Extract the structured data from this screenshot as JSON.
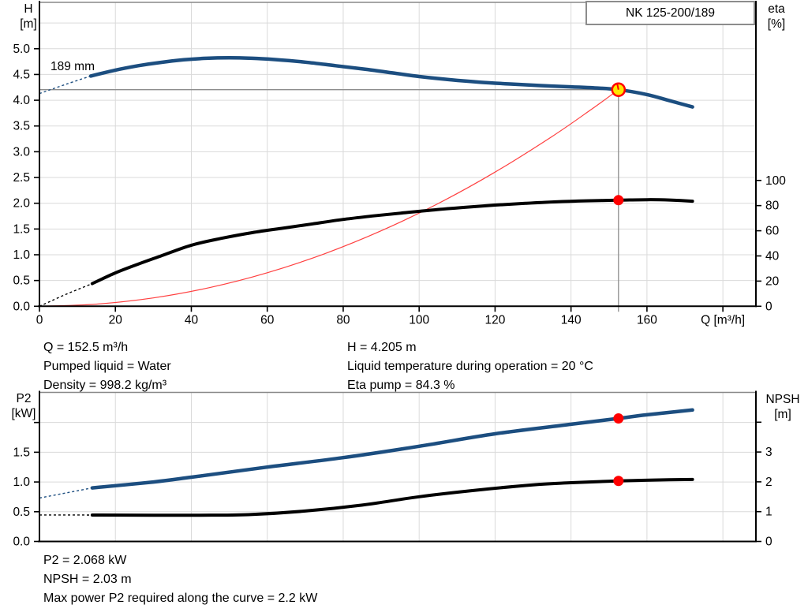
{
  "header": {
    "pump_model": "NK 125-200/189"
  },
  "colors": {
    "pump_blue": "#1C4E80",
    "efficiency_black": "#000000",
    "system_red": "#FF4040",
    "duty_yellow": "#FFE600",
    "marker_red": "#FF0000",
    "grid_gray": "#DADADA",
    "crosshair_gray": "#8C8C8C",
    "axis_black": "#000000"
  },
  "chart_data": [
    {
      "type": "line",
      "title": "Pump performance curve H-Q with efficiency and system curve",
      "xlabel": "Q [m³/h]",
      "ylabel_left": [
        "H",
        "[m]"
      ],
      "ylabel_right": [
        "eta",
        "[%]"
      ],
      "x": {
        "min": 0,
        "max": 188.7,
        "grid_step": 20,
        "ticks_labeled": [
          0,
          20,
          40,
          60,
          80,
          100,
          120,
          140,
          160
        ],
        "ticks_unlabeled": [
          180
        ],
        "decimals": 0
      },
      "yl": {
        "min": 0,
        "max": 5.9,
        "grid_step": 0.5,
        "ticks_labeled": [
          0,
          0.5,
          1,
          1.5,
          2,
          2.5,
          3,
          3.5,
          4,
          4.5,
          5
        ],
        "ticks_unlabeled": [],
        "decimals": 1
      },
      "yr": {
        "min": 0,
        "max": 241.5,
        "ticks_labeled": [
          0,
          20,
          40,
          60,
          80,
          100
        ],
        "ticks_unlabeled": [],
        "decimals": 0
      },
      "annotation": {
        "text": "189 mm"
      },
      "series": [
        {
          "name": "system-curve",
          "axis": "yl",
          "color": "#FF4040",
          "width": 1.2,
          "points": [
            [
              0,
              0
            ],
            [
              15,
              0.041
            ],
            [
              30,
              0.163
            ],
            [
              45,
              0.366
            ],
            [
              60,
              0.651
            ],
            [
              75,
              1.017
            ],
            [
              90,
              1.465
            ],
            [
              105,
              1.994
            ],
            [
              120,
              2.604
            ],
            [
              135,
              3.296
            ],
            [
              145,
              3.803
            ],
            [
              152.5,
              4.205
            ]
          ]
        },
        {
          "name": "efficiency-curve",
          "axis": "yr",
          "color": "#000000",
          "width": 4,
          "dashed": [
            [
              0,
              0
            ],
            [
              7,
              9.5
            ],
            [
              13.9,
              18
            ]
          ],
          "points": [
            [
              13.9,
              18
            ],
            [
              20,
              26.5
            ],
            [
              26,
              33.5
            ],
            [
              32,
              40
            ],
            [
              40,
              48.5
            ],
            [
              48,
              54
            ],
            [
              56,
              58.5
            ],
            [
              64,
              62
            ],
            [
              72,
              65.5
            ],
            [
              80,
              69
            ],
            [
              88,
              71.8
            ],
            [
              96,
              74.3
            ],
            [
              104,
              76.6
            ],
            [
              112,
              78.6
            ],
            [
              120,
              80.4
            ],
            [
              128,
              81.8
            ],
            [
              136,
              83
            ],
            [
              144,
              83.8
            ],
            [
              152.5,
              84.3
            ],
            [
              160,
              84.7
            ],
            [
              166,
              84.4
            ],
            [
              172,
              83.5
            ]
          ]
        },
        {
          "name": "pump-curve",
          "axis": "yl",
          "color": "#1C4E80",
          "width": 4.5,
          "dashed": [
            [
              0,
              4.13
            ],
            [
              7,
              4.31
            ],
            [
              13.5,
              4.47
            ]
          ],
          "points": [
            [
              13.5,
              4.47
            ],
            [
              20,
              4.585
            ],
            [
              26,
              4.67
            ],
            [
              32,
              4.735
            ],
            [
              38,
              4.785
            ],
            [
              44,
              4.815
            ],
            [
              50,
              4.825
            ],
            [
              56,
              4.815
            ],
            [
              62,
              4.79
            ],
            [
              70,
              4.74
            ],
            [
              78,
              4.67
            ],
            [
              86,
              4.6
            ],
            [
              94,
              4.52
            ],
            [
              100,
              4.46
            ],
            [
              108,
              4.4
            ],
            [
              116,
              4.35
            ],
            [
              124,
              4.315
            ],
            [
              132,
              4.285
            ],
            [
              140,
              4.26
            ],
            [
              146,
              4.24
            ],
            [
              152.5,
              4.205
            ],
            [
              160,
              4.11
            ],
            [
              166,
              3.99
            ],
            [
              172,
              3.87
            ]
          ]
        }
      ],
      "markers": [
        {
          "name": "duty-point",
          "axis": "yl",
          "x": 152.5,
          "y": 4.205,
          "style": "duty",
          "crosshair": true
        },
        {
          "name": "efficiency-point",
          "axis": "yr",
          "x": 152.5,
          "y": 84.3,
          "style": "dot"
        }
      ]
    },
    {
      "type": "line",
      "title": "Power P2 and NPSH curves",
      "xlabel": "",
      "ylabel_left": [
        "P2",
        "[kW]"
      ],
      "ylabel_right": [
        "NPSH",
        "[m]"
      ],
      "x": {
        "min": 0,
        "max": 188.7,
        "grid_step": 20,
        "ticks_labeled": [],
        "ticks_unlabeled": [],
        "decimals": 0
      },
      "yl": {
        "min": 0,
        "max": 2.506,
        "grid_step": 0.5,
        "ticks_labeled": [
          0,
          0.5,
          1,
          1.5
        ],
        "ticks_unlabeled": [
          2
        ],
        "decimals": 1
      },
      "yr": {
        "min": 0,
        "max": 5.0,
        "ticks_labeled": [
          0,
          1,
          2,
          3
        ],
        "ticks_unlabeled": [
          4
        ],
        "decimals": 0
      },
      "series": [
        {
          "name": "p2-curve",
          "axis": "yl",
          "color": "#1C4E80",
          "width": 4.5,
          "dashed": [
            [
              0,
              0.73
            ],
            [
              13.9,
              0.9
            ]
          ],
          "points": [
            [
              13.9,
              0.9
            ],
            [
              30,
              1.0
            ],
            [
              40,
              1.08
            ],
            [
              60,
              1.25
            ],
            [
              80,
              1.41
            ],
            [
              100,
              1.6
            ],
            [
              120,
              1.81
            ],
            [
              140,
              1.97
            ],
            [
              152.5,
              2.068
            ],
            [
              160,
              2.13
            ],
            [
              172,
              2.21
            ]
          ]
        },
        {
          "name": "npsh-curve",
          "axis": "yr",
          "color": "#000000",
          "width": 4,
          "dashed": [
            [
              0,
              0.89
            ],
            [
              13.9,
              0.885
            ]
          ],
          "points": [
            [
              13.9,
              0.885
            ],
            [
              30,
              0.88
            ],
            [
              42,
              0.88
            ],
            [
              55,
              0.9
            ],
            [
              70,
              1.02
            ],
            [
              85,
              1.22
            ],
            [
              100,
              1.5
            ],
            [
              115,
              1.72
            ],
            [
              130,
              1.9
            ],
            [
              140,
              1.97
            ],
            [
              152.5,
              2.03
            ],
            [
              162,
              2.06
            ],
            [
              172,
              2.08
            ]
          ]
        }
      ],
      "markers": [
        {
          "name": "p2-point",
          "axis": "yl",
          "x": 152.5,
          "y": 2.068,
          "style": "dot"
        },
        {
          "name": "npsh-point",
          "axis": "yr",
          "x": 152.5,
          "y": 2.03,
          "style": "dot"
        }
      ]
    }
  ],
  "info_top": {
    "left": [
      "Q = 152.5 m³/h",
      "Pumped liquid = Water",
      "Density = 998.2 kg/m³"
    ],
    "right": [
      "H = 4.205 m",
      "Liquid temperature during operation = 20 °C",
      "Eta pump = 84.3 %"
    ]
  },
  "info_bottom": [
    "P2 = 2.068 kW",
    "NPSH = 2.03 m",
    "Max power P2 required along the curve = 2.2 kW"
  ]
}
